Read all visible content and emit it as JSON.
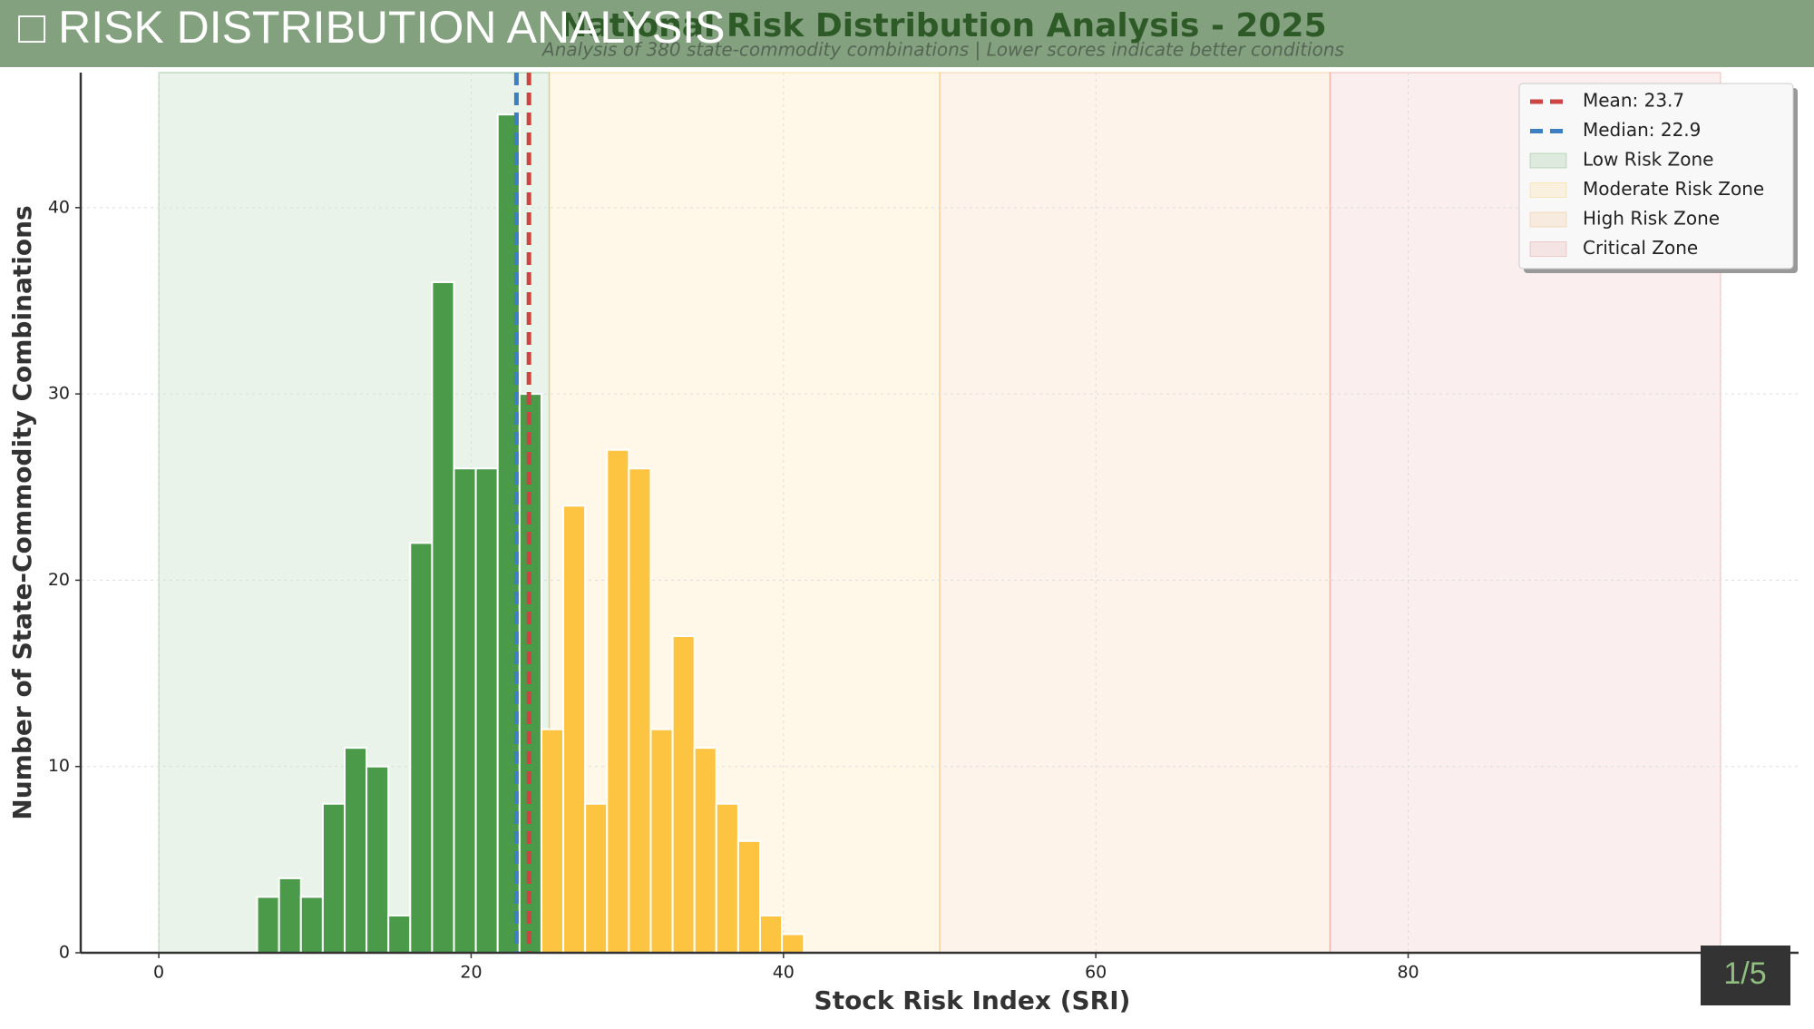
{
  "header": {
    "title": "□ RISK DISTRIBUTION ANALYSIS"
  },
  "chart_data": {
    "type": "histogram",
    "title": "National Risk Distribution Analysis - 2025",
    "subtitle": "Analysis of 380 state-commodity combinations | Lower scores indicate better conditions",
    "x_label": "Stock Risk Index (SRI)",
    "y_label": "Number of State-Commodity Combinations",
    "bins": [
      6.3,
      7.7,
      9.1,
      10.5,
      11.9,
      13.3,
      14.7,
      16.1,
      17.5,
      18.9,
      20.3,
      21.7,
      23.1,
      24.5,
      25.9,
      27.3,
      28.7,
      30.1,
      31.5,
      32.9,
      34.3,
      35.7,
      37.1,
      38.5,
      39.9,
      41.3
    ],
    "values": [
      3,
      4,
      3,
      8,
      11,
      10,
      2,
      22,
      36,
      26,
      26,
      45,
      30,
      12,
      24,
      8,
      27,
      26,
      12,
      17,
      11,
      8,
      6,
      2,
      1
    ],
    "colors": [
      "#4a9a4a",
      "#4a9a4a",
      "#4a9a4a",
      "#4a9a4a",
      "#4a9a4a",
      "#4a9a4a",
      "#4a9a4a",
      "#4a9a4a",
      "#4a9a4a",
      "#4a9a4a",
      "#4a9a4a",
      "#4a9a4a",
      "#4a9a4a",
      "#fdc441",
      "#fdc441",
      "#fdc441",
      "#fdc441",
      "#fdc441",
      "#fdc441",
      "#fdc441",
      "#fdc441",
      "#fdc441",
      "#fdc441",
      "#fdc441",
      "#fdc441"
    ],
    "reference_lines": [
      {
        "label": "Mean: 23.7",
        "value": 23.7,
        "color": "#cc4444"
      },
      {
        "label": "Median: 22.9",
        "value": 22.9,
        "color": "#3d7fc1"
      }
    ],
    "zones": [
      {
        "name": "Low Risk Zone",
        "range": [
          0,
          25
        ],
        "color": "#4a9a4a"
      },
      {
        "name": "Moderate Risk Zone",
        "range": [
          25,
          50
        ],
        "color": "#fdc441"
      },
      {
        "name": "High Risk Zone",
        "range": [
          50,
          75
        ],
        "color": "#f0a050"
      },
      {
        "name": "Critical Zone",
        "range": [
          75,
          100
        ],
        "color": "#e07070"
      }
    ],
    "xlim": [
      -5,
      105
    ],
    "xticks": [
      0,
      20,
      40,
      60,
      80,
      100
    ],
    "ylim": [
      0,
      47.25
    ],
    "yticks": [
      0,
      10,
      20,
      30,
      40
    ],
    "grid": true,
    "legend": "upper right"
  },
  "page_counter": "1/5"
}
